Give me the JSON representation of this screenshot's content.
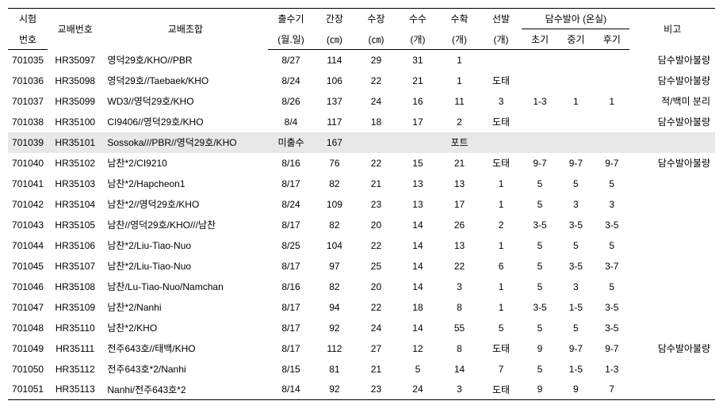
{
  "headers": {
    "sihum": "시험",
    "bunho": "번호",
    "gyobae_bunho": "교배번호",
    "gyobae_johap": "교배조합",
    "chulsugi": "출수기",
    "woleol": "(월.일)",
    "ganjang": "간장",
    "cm": "(㎝)",
    "sujang": "수장",
    "susu": "수수",
    "gae": "(개)",
    "suhwak": "수확",
    "seonbal": "선발",
    "damsu": "담수발아 (온실)",
    "chogi": "초기",
    "junggi": "중기",
    "hugi": "후기",
    "bigo": "비고"
  },
  "rows": [
    {
      "s": "701035",
      "g": "HR35097",
      "c": "영덕29호/KHO//PBR",
      "ch": "8/27",
      "gj": "114",
      "sj": "29",
      "ss": "31",
      "sh": "1",
      "sb": "",
      "d1": "",
      "d2": "",
      "d3": "",
      "b": "담수발아불량",
      "hl": false
    },
    {
      "s": "701036",
      "g": "HR35098",
      "c": "영덕29호//Taebaek/KHO",
      "ch": "8/24",
      "gj": "106",
      "sj": "22",
      "ss": "21",
      "sh": "1",
      "sb": "도태",
      "d1": "",
      "d2": "",
      "d3": "",
      "b": "담수발아불량",
      "hl": false
    },
    {
      "s": "701037",
      "g": "HR35099",
      "c": "WD3//영덕29호/KHO",
      "ch": "8/26",
      "gj": "137",
      "sj": "24",
      "ss": "16",
      "sh": "11",
      "sb": "3",
      "d1": "1-3",
      "d2": "1",
      "d3": "1",
      "b": "적/백미 분리",
      "hl": false
    },
    {
      "s": "701038",
      "g": "HR35100",
      "c": "CI9406//영덕29호/KHO",
      "ch": "8/4",
      "gj": "117",
      "sj": "18",
      "ss": "17",
      "sh": "2",
      "sb": "도태",
      "d1": "",
      "d2": "",
      "d3": "",
      "b": "담수발아불량",
      "hl": false
    },
    {
      "s": "701039",
      "g": "HR35101",
      "c": "Sossoka///PBR//영덕29호/KHO",
      "ch": "미출수",
      "gj": "167",
      "sj": "",
      "ss": "",
      "sh": "포트",
      "sb": "",
      "d1": "",
      "d2": "",
      "d3": "",
      "b": "",
      "hl": true
    },
    {
      "s": "701040",
      "g": "HR35102",
      "c": "남찬*2/CI9210",
      "ch": "8/16",
      "gj": "76",
      "sj": "22",
      "ss": "15",
      "sh": "21",
      "sb": "도태",
      "d1": "9-7",
      "d2": "9-7",
      "d3": "9-7",
      "b": "담수발아불량",
      "hl": false
    },
    {
      "s": "701041",
      "g": "HR35103",
      "c": "남찬*2/Hapcheon1",
      "ch": "8/17",
      "gj": "82",
      "sj": "21",
      "ss": "13",
      "sh": "13",
      "sb": "1",
      "d1": "5",
      "d2": "5",
      "d3": "5",
      "b": "",
      "hl": false
    },
    {
      "s": "701042",
      "g": "HR35104",
      "c": "남찬*2//영덕29호/KHO",
      "ch": "8/24",
      "gj": "109",
      "sj": "23",
      "ss": "13",
      "sh": "17",
      "sb": "1",
      "d1": "5",
      "d2": "3",
      "d3": "3",
      "b": "",
      "hl": false
    },
    {
      "s": "701043",
      "g": "HR35105",
      "c": "남찬//영덕29호/KHO///남찬",
      "ch": "8/17",
      "gj": "82",
      "sj": "20",
      "ss": "14",
      "sh": "26",
      "sb": "2",
      "d1": "3-5",
      "d2": "3-5",
      "d3": "3-5",
      "b": "",
      "hl": false
    },
    {
      "s": "701044",
      "g": "HR35106",
      "c": "남찬*2/Liu-Tiao-Nuo",
      "ch": "8/25",
      "gj": "104",
      "sj": "22",
      "ss": "14",
      "sh": "13",
      "sb": "1",
      "d1": "5",
      "d2": "5",
      "d3": "5",
      "b": "",
      "hl": false
    },
    {
      "s": "701045",
      "g": "HR35107",
      "c": "남찬*2/Liu-Tiao-Nuo",
      "ch": "8/17",
      "gj": "97",
      "sj": "25",
      "ss": "14",
      "sh": "22",
      "sb": "6",
      "d1": "5",
      "d2": "3-5",
      "d3": "3-7",
      "b": "",
      "hl": false
    },
    {
      "s": "701046",
      "g": "HR35108",
      "c": "남찬/Lu-Tiao-Nuo/Namchan",
      "ch": "8/16",
      "gj": "82",
      "sj": "20",
      "ss": "14",
      "sh": "3",
      "sb": "1",
      "d1": "5",
      "d2": "3",
      "d3": "5",
      "b": "",
      "hl": false
    },
    {
      "s": "701047",
      "g": "HR35109",
      "c": "남찬*2/Nanhi",
      "ch": "8/17",
      "gj": "94",
      "sj": "22",
      "ss": "18",
      "sh": "8",
      "sb": "1",
      "d1": "3-5",
      "d2": "1-5",
      "d3": "3-5",
      "b": "",
      "hl": false
    },
    {
      "s": "701048",
      "g": "HR35110",
      "c": "남찬*2/KHO",
      "ch": "8/17",
      "gj": "92",
      "sj": "24",
      "ss": "14",
      "sh": "55",
      "sb": "5",
      "d1": "5",
      "d2": "5",
      "d3": "3-5",
      "b": "",
      "hl": false
    },
    {
      "s": "701049",
      "g": "HR35111",
      "c": "전주643호//태백/KHO",
      "ch": "8/17",
      "gj": "112",
      "sj": "27",
      "ss": "12",
      "sh": "8",
      "sb": "도태",
      "d1": "9",
      "d2": "9-7",
      "d3": "9-7",
      "b": "담수발아불량",
      "hl": false
    },
    {
      "s": "701050",
      "g": "HR35112",
      "c": "전주643호*2/Nanhi",
      "ch": "8/15",
      "gj": "81",
      "sj": "21",
      "ss": "5",
      "sh": "14",
      "sb": "7",
      "d1": "5",
      "d2": "1-5",
      "d3": "1-3",
      "b": "",
      "hl": false
    },
    {
      "s": "701051",
      "g": "HR35113",
      "c": "Nanhi/전주643호*2",
      "ch": "8/14",
      "gj": "92",
      "sj": "23",
      "ss": "24",
      "sh": "3",
      "sb": "도태",
      "d1": "9",
      "d2": "9",
      "d3": "7",
      "b": "",
      "hl": false
    }
  ]
}
